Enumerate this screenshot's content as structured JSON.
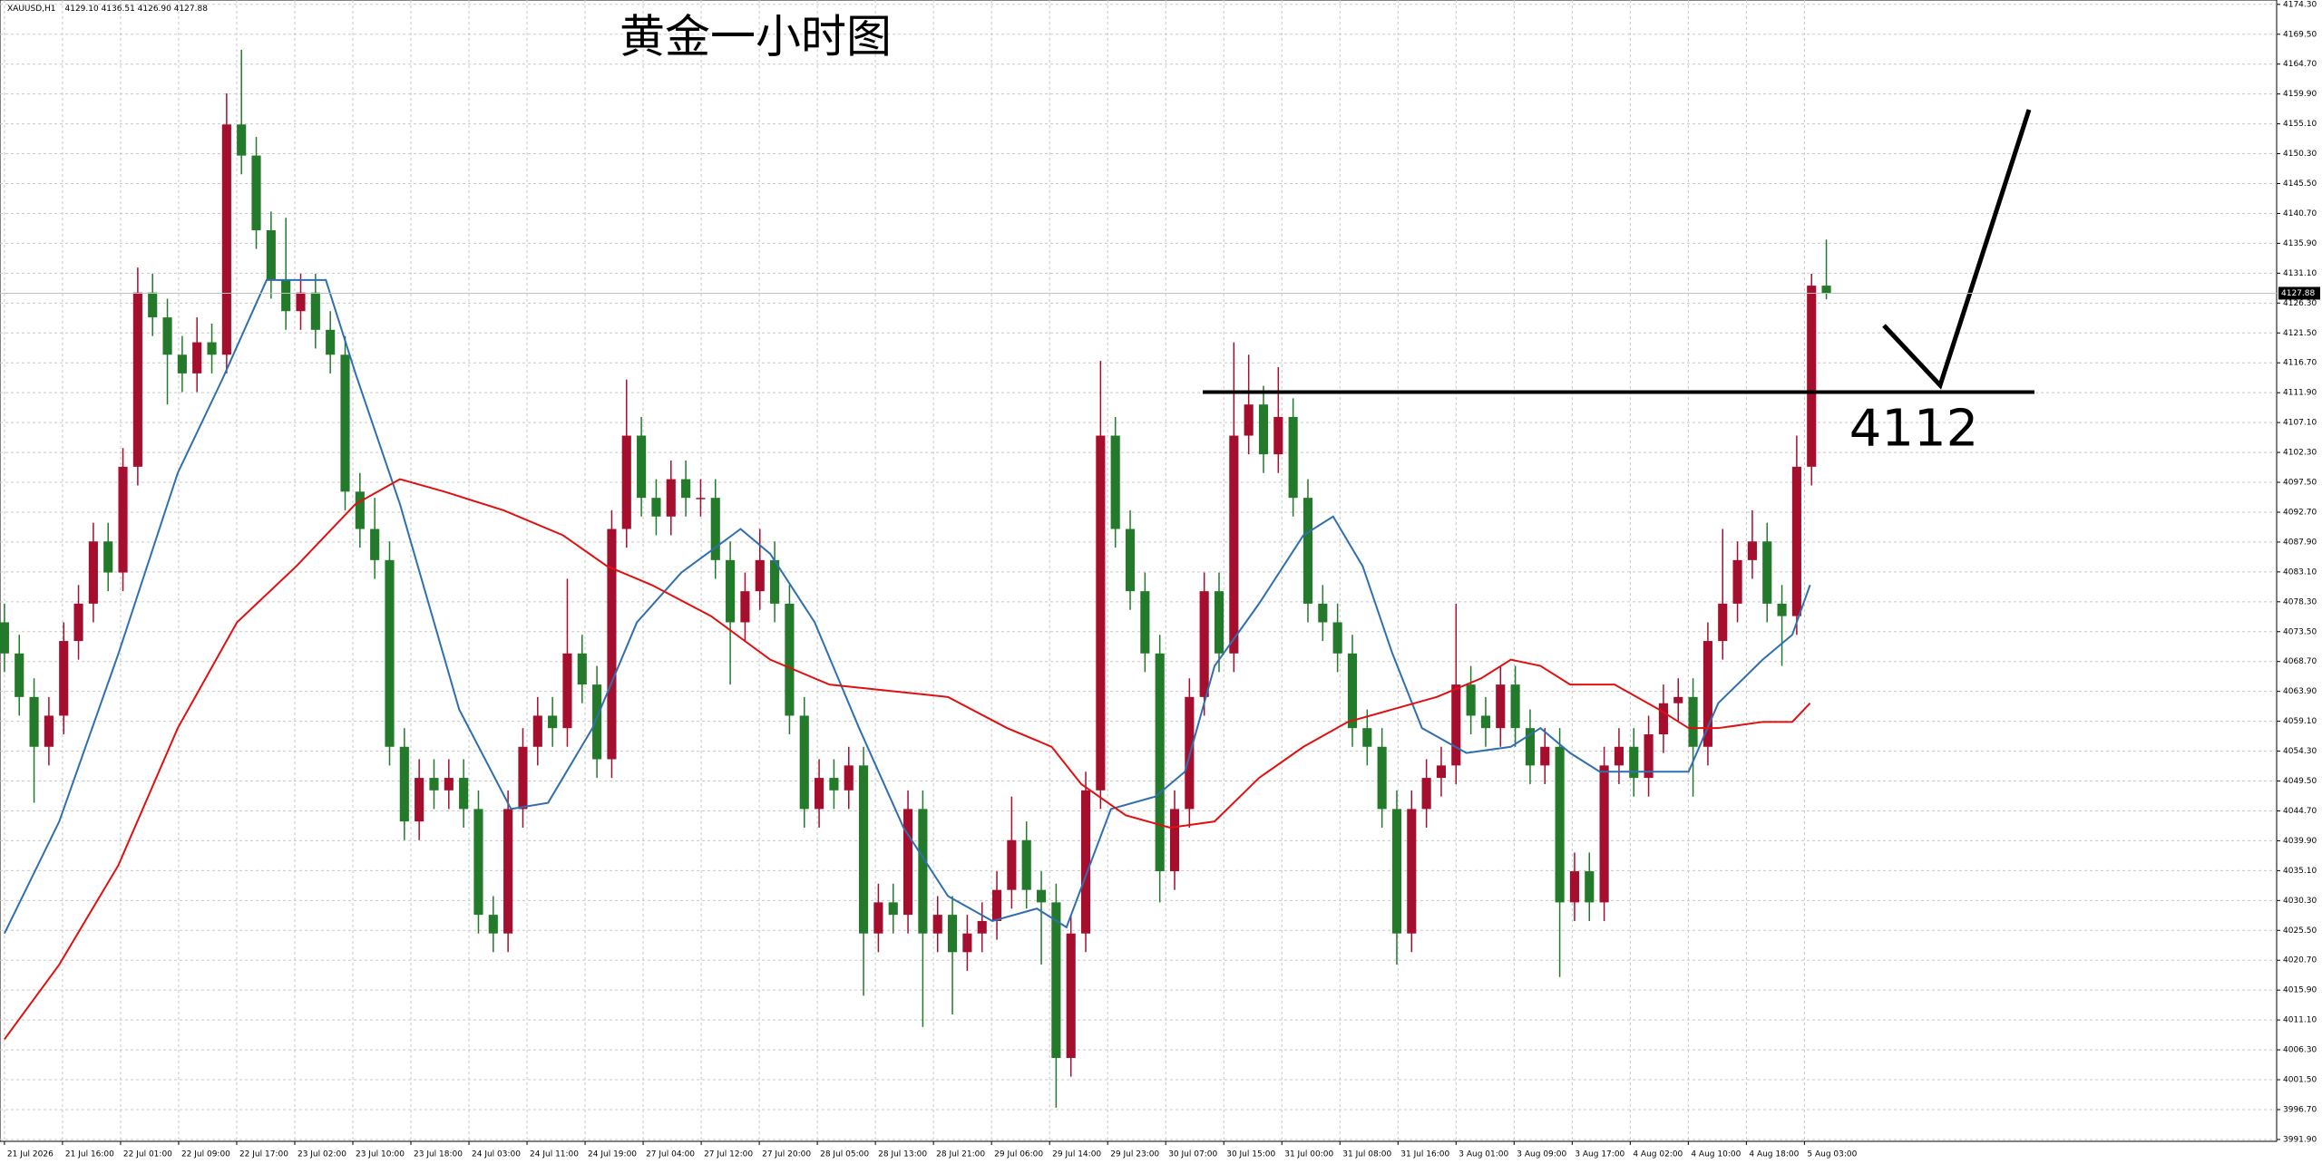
{
  "chart_data": {
    "type": "candlestick",
    "title": "黄金一小时图",
    "symbol": "XAUUSD,H1",
    "header_values": "4129.10 4136.51 4126.90 4127.88",
    "up_color": "#a50f2d",
    "down_color": "#237a2a",
    "grid": true,
    "xlim": [
      -0.3,
      153.4
    ],
    "ylim": [
      3991.6,
      4175.0
    ],
    "yticks": [
      {
        "value": 3991.9,
        "label": "3991.90"
      },
      {
        "value": 3996.7,
        "label": "3996.70"
      },
      {
        "value": 4001.5,
        "label": "4001.50"
      },
      {
        "value": 4006.3,
        "label": "4006.30"
      },
      {
        "value": 4011.1,
        "label": "4011.10"
      },
      {
        "value": 4015.9,
        "label": "4015.90"
      },
      {
        "value": 4020.7,
        "label": "4020.70"
      },
      {
        "value": 4025.5,
        "label": "4025.50"
      },
      {
        "value": 4030.3,
        "label": "4030.30"
      },
      {
        "value": 4035.1,
        "label": "4035.10"
      },
      {
        "value": 4039.9,
        "label": "4039.90"
      },
      {
        "value": 4044.7,
        "label": "4044.70"
      },
      {
        "value": 4049.5,
        "label": "4049.50"
      },
      {
        "value": 4054.3,
        "label": "4054.30"
      },
      {
        "value": 4059.1,
        "label": "4059.10"
      },
      {
        "value": 4063.9,
        "label": "4063.90"
      },
      {
        "value": 4068.7,
        "label": "4068.70"
      },
      {
        "value": 4073.5,
        "label": "4073.50"
      },
      {
        "value": 4078.3,
        "label": "4078.30"
      },
      {
        "value": 4083.1,
        "label": "4083.10"
      },
      {
        "value": 4087.9,
        "label": "4087.90"
      },
      {
        "value": 4092.7,
        "label": "4092.70"
      },
      {
        "value": 4097.5,
        "label": "4097.50"
      },
      {
        "value": 4102.3,
        "label": "4102.30"
      },
      {
        "value": 4107.1,
        "label": "4107.10"
      },
      {
        "value": 4111.9,
        "label": "4111.90"
      },
      {
        "value": 4116.7,
        "label": "4116.70"
      },
      {
        "value": 4121.5,
        "label": "4121.50"
      },
      {
        "value": 4126.3,
        "label": "4126.30"
      },
      {
        "value": 4131.1,
        "label": "4131.10"
      },
      {
        "value": 4135.9,
        "label": "4135.90"
      },
      {
        "value": 4140.7,
        "label": "4140.70"
      },
      {
        "value": 4145.5,
        "label": "4145.50"
      },
      {
        "value": 4150.3,
        "label": "4150.30"
      },
      {
        "value": 4155.1,
        "label": "4155.10"
      },
      {
        "value": 4159.9,
        "label": "4159.90"
      },
      {
        "value": 4164.7,
        "label": "4164.70"
      },
      {
        "value": 4169.5,
        "label": "4169.50"
      },
      {
        "value": 4174.3,
        "label": "4174.30"
      }
    ],
    "time_labels": [
      "21 Jul 2026",
      "21 Jul 16:00",
      "22 Jul 01:00",
      "22 Jul 09:00",
      "22 Jul 17:00",
      "23 Jul 02:00",
      "23 Jul 10:00",
      "23 Jul 18:00",
      "24 Jul 03:00",
      "24 Jul 11:00",
      "24 Jul 19:00",
      "27 Jul 04:00",
      "27 Jul 12:00",
      "27 Jul 20:00",
      "28 Jul 05:00",
      "28 Jul 13:00",
      "28 Jul 21:00",
      "29 Jul 06:00",
      "29 Jul 14:00",
      "29 Jul 23:00",
      "30 Jul 07:00",
      "30 Jul 15:00",
      "31 Jul 00:00",
      "31 Jul 08:00",
      "31 Jul 16:00",
      "3 Aug 01:00",
      "3 Aug 09:00",
      "3 Aug 17:00",
      "4 Aug 02:00",
      "4 Aug 10:00",
      "4 Aug 18:00",
      "5 Aug 03:00"
    ],
    "current_price": {
      "value": 4127.88,
      "label": "4127.88"
    },
    "level": 4112,
    "ohlc": [
      [
        4075,
        4078,
        4067,
        4070
      ],
      [
        4070,
        4073,
        4060,
        4063
      ],
      [
        4063,
        4066,
        4046,
        4055
      ],
      [
        4055,
        4063,
        4052,
        4060
      ],
      [
        4060,
        4075,
        4057,
        4072
      ],
      [
        4072,
        4081,
        4069,
        4078
      ],
      [
        4078,
        4091,
        4075,
        4088
      ],
      [
        4088,
        4091,
        4080,
        4083
      ],
      [
        4083,
        4103,
        4080,
        4100
      ],
      [
        4100,
        4132,
        4097,
        4128
      ],
      [
        4128,
        4131,
        4121,
        4124
      ],
      [
        4124,
        4127,
        4110,
        4118
      ],
      [
        4118,
        4121,
        4112,
        4115
      ],
      [
        4115,
        4124,
        4112,
        4120
      ],
      [
        4120,
        4123,
        4115,
        4118
      ],
      [
        4118,
        4160,
        4115,
        4155
      ],
      [
        4155,
        4167,
        4147,
        4150
      ],
      [
        4150,
        4153,
        4135,
        4138
      ],
      [
        4138,
        4141,
        4127,
        4130
      ],
      [
        4130,
        4140,
        4122,
        4125
      ],
      [
        4125,
        4131,
        4122,
        4128
      ],
      [
        4128,
        4131,
        4119,
        4122
      ],
      [
        4122,
        4125,
        4115,
        4118
      ],
      [
        4118,
        4121,
        4093,
        4096
      ],
      [
        4096,
        4099,
        4087,
        4090
      ],
      [
        4090,
        4095,
        4082,
        4085
      ],
      [
        4085,
        4088,
        4052,
        4055
      ],
      [
        4055,
        4058,
        4040,
        4043
      ],
      [
        4043,
        4053,
        4040,
        4050
      ],
      [
        4050,
        4053,
        4045,
        4048
      ],
      [
        4048,
        4053,
        4045,
        4050
      ],
      [
        4050,
        4053,
        4042,
        4045
      ],
      [
        4045,
        4048,
        4025,
        4028
      ],
      [
        4028,
        4031,
        4022,
        4025
      ],
      [
        4025,
        4048,
        4022,
        4045
      ],
      [
        4045,
        4058,
        4042,
        4055
      ],
      [
        4055,
        4063,
        4052,
        4060
      ],
      [
        4060,
        4063,
        4055,
        4058
      ],
      [
        4058,
        4082,
        4055,
        4070
      ],
      [
        4070,
        4073,
        4062,
        4065
      ],
      [
        4065,
        4068,
        4050,
        4053
      ],
      [
        4053,
        4093,
        4050,
        4090
      ],
      [
        4090,
        4114,
        4087,
        4105
      ],
      [
        4105,
        4108,
        4092,
        4095
      ],
      [
        4095,
        4098,
        4089,
        4092
      ],
      [
        4092,
        4101,
        4089,
        4098
      ],
      [
        4098,
        4101,
        4092,
        4095
      ],
      [
        4095,
        4098,
        4092,
        4095
      ],
      [
        4095,
        4098,
        4082,
        4085
      ],
      [
        4085,
        4088,
        4065,
        4075
      ],
      [
        4075,
        4083,
        4072,
        4080
      ],
      [
        4080,
        4090,
        4077,
        4085
      ],
      [
        4085,
        4088,
        4075,
        4078
      ],
      [
        4078,
        4081,
        4057,
        4060
      ],
      [
        4060,
        4063,
        4042,
        4045
      ],
      [
        4045,
        4053,
        4042,
        4050
      ],
      [
        4050,
        4053,
        4045,
        4048
      ],
      [
        4048,
        4055,
        4045,
        4052
      ],
      [
        4052,
        4055,
        4015,
        4025
      ],
      [
        4025,
        4033,
        4022,
        4030
      ],
      [
        4030,
        4033,
        4025,
        4028
      ],
      [
        4028,
        4048,
        4025,
        4045
      ],
      [
        4045,
        4048,
        4010,
        4025
      ],
      [
        4025,
        4031,
        4022,
        4028
      ],
      [
        4028,
        4031,
        4012,
        4022
      ],
      [
        4022,
        4028,
        4019,
        4025
      ],
      [
        4025,
        4030,
        4022,
        4027
      ],
      [
        4027,
        4035,
        4024,
        4032
      ],
      [
        4032,
        4047,
        4029,
        4040
      ],
      [
        4040,
        4043,
        4029,
        4032
      ],
      [
        4032,
        4035,
        4020,
        4030
      ],
      [
        4030,
        4033,
        3997,
        4005
      ],
      [
        4005,
        4028,
        4002,
        4025
      ],
      [
        4025,
        4051,
        4022,
        4048
      ],
      [
        4048,
        4117,
        4045,
        4105
      ],
      [
        4105,
        4108,
        4087,
        4090
      ],
      [
        4090,
        4093,
        4077,
        4080
      ],
      [
        4080,
        4083,
        4067,
        4070
      ],
      [
        4070,
        4073,
        4030,
        4035
      ],
      [
        4035,
        4048,
        4032,
        4045
      ],
      [
        4045,
        4066,
        4042,
        4063
      ],
      [
        4063,
        4083,
        4060,
        4080
      ],
      [
        4080,
        4083,
        4067,
        4070
      ],
      [
        4070,
        4120,
        4067,
        4105
      ],
      [
        4105,
        4118,
        4102,
        4110
      ],
      [
        4110,
        4113,
        4099,
        4102
      ],
      [
        4102,
        4116,
        4099,
        4108
      ],
      [
        4108,
        4111,
        4092,
        4095
      ],
      [
        4095,
        4098,
        4075,
        4078
      ],
      [
        4078,
        4081,
        4072,
        4075
      ],
      [
        4075,
        4078,
        4067,
        4070
      ],
      [
        4070,
        4073,
        4055,
        4058
      ],
      [
        4058,
        4061,
        4052,
        4055
      ],
      [
        4055,
        4058,
        4042,
        4045
      ],
      [
        4045,
        4048,
        4020,
        4025
      ],
      [
        4025,
        4048,
        4022,
        4045
      ],
      [
        4045,
        4053,
        4042,
        4050
      ],
      [
        4050,
        4055,
        4047,
        4052
      ],
      [
        4052,
        4078,
        4049,
        4065
      ],
      [
        4065,
        4068,
        4057,
        4060
      ],
      [
        4060,
        4063,
        4055,
        4058
      ],
      [
        4058,
        4068,
        4055,
        4065
      ],
      [
        4065,
        4068,
        4055,
        4058
      ],
      [
        4058,
        4061,
        4049,
        4052
      ],
      [
        4052,
        4058,
        4049,
        4055
      ],
      [
        4055,
        4058,
        4018,
        4030
      ],
      [
        4030,
        4038,
        4027,
        4035
      ],
      [
        4035,
        4038,
        4027,
        4030
      ],
      [
        4030,
        4055,
        4027,
        4052
      ],
      [
        4052,
        4058,
        4049,
        4055
      ],
      [
        4055,
        4058,
        4047,
        4050
      ],
      [
        4050,
        4060,
        4047,
        4057
      ],
      [
        4057,
        4065,
        4054,
        4062
      ],
      [
        4062,
        4066,
        4059,
        4063
      ],
      [
        4063,
        4066,
        4047,
        4055
      ],
      [
        4055,
        4075,
        4052,
        4072
      ],
      [
        4072,
        4090,
        4069,
        4078
      ],
      [
        4078,
        4088,
        4075,
        4085
      ],
      [
        4085,
        4093,
        4082,
        4088
      ],
      [
        4088,
        4091,
        4075,
        4078
      ],
      [
        4078,
        4081,
        4068,
        4076
      ],
      [
        4076,
        4105,
        4073,
        4100
      ],
      [
        4100,
        4131,
        4097,
        4129.1
      ],
      [
        4129.1,
        4136.51,
        4126.9,
        4127.88
      ]
    ],
    "series": [
      {
        "color": "#2f6fb0",
        "x": [
          0,
          3.7,
          7.7,
          11.7,
          14.7,
          17.7,
          21.7,
          23.7,
          26.7,
          30.7,
          34.2,
          36.7,
          39.7,
          42.7,
          45.7,
          49.7,
          51.7,
          54.7,
          57.7,
          60.7,
          63.7,
          66.7,
          69.7,
          71.7,
          74.7,
          77.7,
          79.7,
          81.7,
          84.7,
          87.7,
          89.7,
          91.7,
          93.7,
          95.7,
          98.7,
          101.7,
          103.7,
          105.7,
          107.7,
          110.7,
          113.7,
          115.7,
          118.7,
          120.7,
          121.9
        ],
        "values": [
          4025,
          4043,
          4070,
          4099,
          4114,
          4130,
          4130,
          4115,
          4094,
          4061,
          4045,
          4046,
          4058,
          4075,
          4083,
          4090,
          4086,
          4075,
          4058,
          4042,
          4031,
          4027,
          4029,
          4026,
          4045,
          4047,
          4051,
          4068,
          4078,
          4089,
          4092,
          4084,
          4070,
          4058,
          4054,
          4055,
          4058,
          4054,
          4051,
          4051,
          4051,
          4062,
          4069,
          4073,
          4081
        ]
      },
      {
        "color": "#e01010",
        "x": [
          0,
          3.7,
          7.7,
          11.7,
          15.7,
          19.7,
          23.7,
          26.7,
          29.7,
          33.7,
          37.7,
          40.7,
          43.7,
          47.7,
          51.7,
          55.7,
          59.7,
          63.7,
          67.7,
          70.7,
          72.7,
          75.7,
          78.7,
          81.7,
          84.7,
          87.7,
          90.7,
          93.7,
          96.7,
          99.7,
          101.7,
          103.7,
          105.7,
          108.7,
          111.7,
          113.7,
          115.7,
          118.7,
          120.7,
          121.9
        ],
        "values": [
          4008,
          4020,
          4036,
          4058,
          4075,
          4084,
          4094,
          4098,
          4096,
          4093,
          4089,
          4084,
          4081,
          4076,
          4069,
          4065,
          4064,
          4063,
          4058,
          4055,
          4049,
          4044,
          4042,
          4043,
          4050,
          4055,
          4059,
          4061,
          4063,
          4066,
          4069,
          4068,
          4065,
          4065,
          4061,
          4058,
          4058,
          4059,
          4059,
          4062
        ]
      }
    ]
  }
}
